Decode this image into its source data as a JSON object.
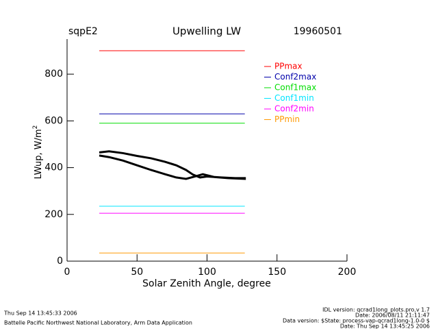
{
  "chart_data": {
    "type": "line",
    "site": "sqpE2",
    "title": "Upwelling  LW",
    "date": "19960501",
    "x_label": "Solar Zenith Angle, degree",
    "y_label": "LWup, W/m",
    "y_label_sup": "2",
    "xlim": [
      0,
      200
    ],
    "ylim": [
      0,
      950
    ],
    "xticks": [
      0,
      50,
      100,
      150,
      200
    ],
    "yticks": [
      0,
      200,
      400,
      600,
      800
    ],
    "series": [
      {
        "name": "PPmax",
        "color": "#ff0000",
        "x": [
          23,
          127
        ],
        "values": [
          900,
          900
        ]
      },
      {
        "name": "Conf2max",
        "color": "#0000aa",
        "x": [
          23,
          127
        ],
        "values": [
          630,
          630
        ]
      },
      {
        "name": "Conf1max",
        "color": "#00dd00",
        "x": [
          23,
          127
        ],
        "values": [
          590,
          590
        ]
      },
      {
        "name": "Conf1min",
        "color": "#00e5ff",
        "x": [
          23,
          127
        ],
        "values": [
          235,
          235
        ]
      },
      {
        "name": "Conf2min",
        "color": "#ff00ff",
        "x": [
          23,
          127
        ],
        "values": [
          205,
          205
        ]
      },
      {
        "name": "PPmin",
        "color": "#ff9900",
        "x": [
          23,
          127
        ],
        "values": [
          35,
          35
        ]
      },
      {
        "color": "#000000",
        "x": [
          23,
          30,
          40,
          50,
          60,
          70,
          78,
          85,
          90,
          95,
          100,
          110,
          120,
          127,
          127,
          115,
          105,
          97,
          93,
          85,
          78,
          70,
          60,
          50,
          40,
          30,
          23
        ],
        "values": [
          465,
          470,
          462,
          450,
          440,
          425,
          410,
          390,
          370,
          358,
          362,
          358,
          355,
          355,
          352,
          355,
          360,
          372,
          365,
          352,
          358,
          372,
          390,
          410,
          430,
          445,
          452
        ]
      }
    ]
  },
  "footer": {
    "printed": "Thu Sep 14 13:45:33 2006",
    "lab": "Battelle Pacific Northwest National Laboratory, Arm Data Application",
    "idl_version": "IDL version: qcrad1long_plots.pro,v 1.7",
    "idl_date": "Date: 2006/08/11 21:11:47",
    "data_version": "Data version: $State: process-vap-qcrad1long-1.0-0 $",
    "data_date": "Date: Thu Sep 14 13:45:25 2006"
  }
}
